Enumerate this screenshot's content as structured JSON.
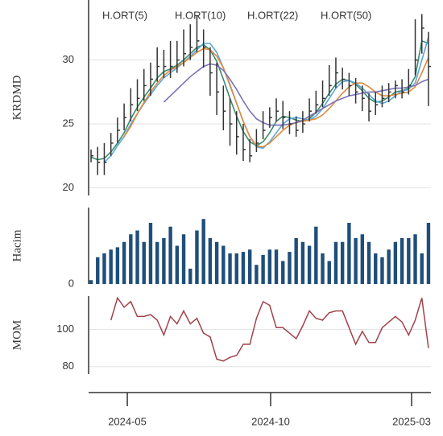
{
  "chart_data": [
    {
      "type": "ohlc",
      "ylabel": "KRDMD",
      "x": [
        0,
        1,
        2,
        3,
        4,
        5,
        6,
        7,
        8,
        9,
        10,
        11,
        12,
        13,
        14,
        15,
        16,
        17,
        18,
        19,
        20,
        21,
        22,
        23,
        24,
        25,
        26,
        27,
        28,
        29,
        30,
        31,
        32,
        33,
        34,
        35,
        36,
        37,
        38,
        39,
        40,
        41,
        42,
        43,
        44,
        45,
        46,
        47,
        48,
        49,
        50,
        51
      ],
      "xlim": [
        -0.37,
        51.37
      ],
      "xticks": [
        {
          "value": 5.48,
          "label": "2024-05"
        },
        {
          "value": 27.14,
          "label": "2024-10"
        },
        {
          "value": 48.45,
          "label": "2025-03"
        }
      ],
      "ylim": [
        19.4,
        34.7
      ],
      "yticks": [
        20,
        25,
        30
      ],
      "grid": true,
      "color": "#333333",
      "high": [
        23,
        23.2,
        23.5,
        24.3,
        25.5,
        26.6,
        27.8,
        28.5,
        29.3,
        29.8,
        31,
        30.8,
        31.5,
        31.5,
        32.4,
        32.8,
        33.5,
        32.4,
        31,
        29.8,
        28,
        27,
        26,
        25,
        23.8,
        24.6,
        26,
        26.3,
        27,
        26.8,
        26,
        25.6,
        26,
        27,
        27.6,
        28.4,
        29.6,
        30.2,
        29.4,
        29,
        28.6,
        28,
        27.4,
        27.5,
        28,
        28.2,
        28.4,
        28.5,
        29.3,
        33.2,
        33.6,
        32.2
      ],
      "low": [
        22,
        21,
        21,
        22.5,
        23.5,
        24.5,
        25.2,
        26,
        26.8,
        27.2,
        28.3,
        28.6,
        28.6,
        29,
        29.5,
        30,
        30.6,
        29.4,
        27.2,
        25.7,
        24.5,
        23.3,
        22.6,
        22.1,
        22,
        22.8,
        23.8,
        24.7,
        25.2,
        24.6,
        24.2,
        24,
        24.3,
        25.2,
        25.8,
        26.3,
        27.2,
        27.8,
        27.7,
        27.2,
        26.6,
        26,
        25.2,
        25.7,
        26.3,
        26.7,
        27,
        27,
        27.3,
        28.8,
        30.5,
        26.4
      ],
      "close": [
        22.5,
        22,
        22,
        23.5,
        24.5,
        25.5,
        26.5,
        27,
        28,
        28.5,
        29.5,
        29.5,
        29.5,
        30,
        30.5,
        31,
        31.5,
        31,
        29,
        27.5,
        26,
        25,
        24,
        23,
        22.5,
        23.5,
        24.5,
        25.5,
        26,
        25.5,
        25,
        24.5,
        25,
        26,
        26.5,
        27,
        28,
        29,
        28.5,
        28,
        27.5,
        27,
        26,
        26.5,
        27,
        27.5,
        28,
        27.5,
        28,
        30,
        32.5,
        29.5
      ],
      "series": [
        {
          "name": "H.ORT(5)",
          "color": "#3b8a6b",
          "values": [
            22.4,
            22.2,
            22.3,
            22.8,
            23.5,
            24.3,
            25.4,
            26.3,
            27.1,
            27.8,
            28.6,
            29.1,
            29.3,
            29.6,
            30,
            30.5,
            31,
            31.2,
            30.8,
            29.9,
            28.5,
            27,
            25.6,
            24.4,
            23.6,
            23.3,
            23.6,
            24.3,
            25.2,
            25.6,
            25.5,
            25.3,
            25.2,
            25.4,
            25.9,
            26.6,
            27.4,
            28.1,
            28.5,
            28.4,
            28.1,
            27.6,
            27,
            26.7,
            26.8,
            27.1,
            27.5,
            27.6,
            27.8,
            28.7,
            31.5,
            31.3
          ]
        },
        {
          "name": "H.ORT(10)",
          "color": "#5aa7e0",
          "values": [
            null,
            null,
            22,
            22.5,
            23.3,
            24,
            25,
            25.8,
            26.6,
            27.3,
            28,
            28.6,
            29,
            29.4,
            29.8,
            30.3,
            30.8,
            31.3,
            31.3,
            30.6,
            29.4,
            28,
            26.6,
            25.2,
            24,
            23.2,
            23.1,
            23.6,
            24.3,
            25,
            25.4,
            25.5,
            25.4,
            25.3,
            25.6,
            26.2,
            27,
            27.8,
            28.3,
            28.4,
            28.2,
            27.8,
            27.3,
            26.8,
            26.6,
            26.8,
            27.2,
            27.6,
            27.7,
            28.2,
            30,
            31.8
          ]
        },
        {
          "name": "H.ORT(22)",
          "color": "#e08a3c",
          "values": [
            null,
            null,
            null,
            null,
            null,
            24,
            24.8,
            25.8,
            26.7,
            27.5,
            28.2,
            28.8,
            29.2,
            29.5,
            29.8,
            30.2,
            30.6,
            30.9,
            30.8,
            30.3,
            29.4,
            28.1,
            26.6,
            25.2,
            24,
            23.3,
            23.2,
            23.5,
            24,
            24.5,
            24.9,
            25.1,
            25.2,
            25.3,
            25.4,
            25.7,
            26.2,
            26.8,
            27.4,
            27.9,
            28.2,
            28.2,
            27.9,
            27.5,
            27.2,
            27.2,
            27.3,
            27.4,
            27.5,
            27.9,
            29,
            30.2
          ]
        },
        {
          "name": "H.ORT(50)",
          "color": "#7a72b8",
          "values": [
            null,
            null,
            null,
            null,
            null,
            null,
            null,
            null,
            null,
            null,
            null,
            26.7,
            27.2,
            27.7,
            28.2,
            28.7,
            29.1,
            29.5,
            29.7,
            29.6,
            29.2,
            28.5,
            27.7,
            26.8,
            26,
            25.4,
            25.1,
            24.9,
            24.9,
            24.9,
            25,
            25.1,
            25.3,
            25.6,
            25.9,
            26.2,
            26.5,
            26.8,
            27,
            27.2,
            27.3,
            27.4,
            27.5,
            27.5,
            27.6,
            27.7,
            27.8,
            27.8,
            27.9,
            28,
            28.3,
            28.5
          ]
        }
      ]
    },
    {
      "type": "bar",
      "ylabel": "Hacim",
      "ylim": [
        0,
        100
      ],
      "yticks": [
        0
      ],
      "grid": false,
      "color": "#1f4e79",
      "values": [
        5,
        35,
        40,
        45,
        48,
        55,
        65,
        70,
        55,
        80,
        55,
        60,
        75,
        50,
        65,
        20,
        70,
        85,
        60,
        55,
        50,
        40,
        40,
        42,
        45,
        25,
        38,
        45,
        45,
        30,
        42,
        60,
        55,
        50,
        75,
        40,
        30,
        55,
        55,
        80,
        60,
        65,
        55,
        40,
        35,
        45,
        55,
        60,
        60,
        65,
        40,
        80
      ]
    },
    {
      "type": "line",
      "ylabel": "MOM",
      "ylim": [
        76,
        118
      ],
      "yticks": [
        80,
        100
      ],
      "grid": true,
      "color": "#a0424a",
      "values": [
        null,
        null,
        null,
        105,
        117,
        112,
        115,
        107,
        107,
        108,
        105,
        97,
        107,
        103,
        110,
        103,
        106,
        98,
        96,
        84,
        83,
        85,
        86,
        92,
        92,
        106,
        115,
        113,
        101,
        101,
        98,
        95,
        102,
        110,
        106,
        105,
        109,
        110,
        110,
        101,
        92,
        99,
        93,
        93,
        101,
        104,
        107,
        104,
        97,
        105,
        117,
        90
      ]
    }
  ]
}
